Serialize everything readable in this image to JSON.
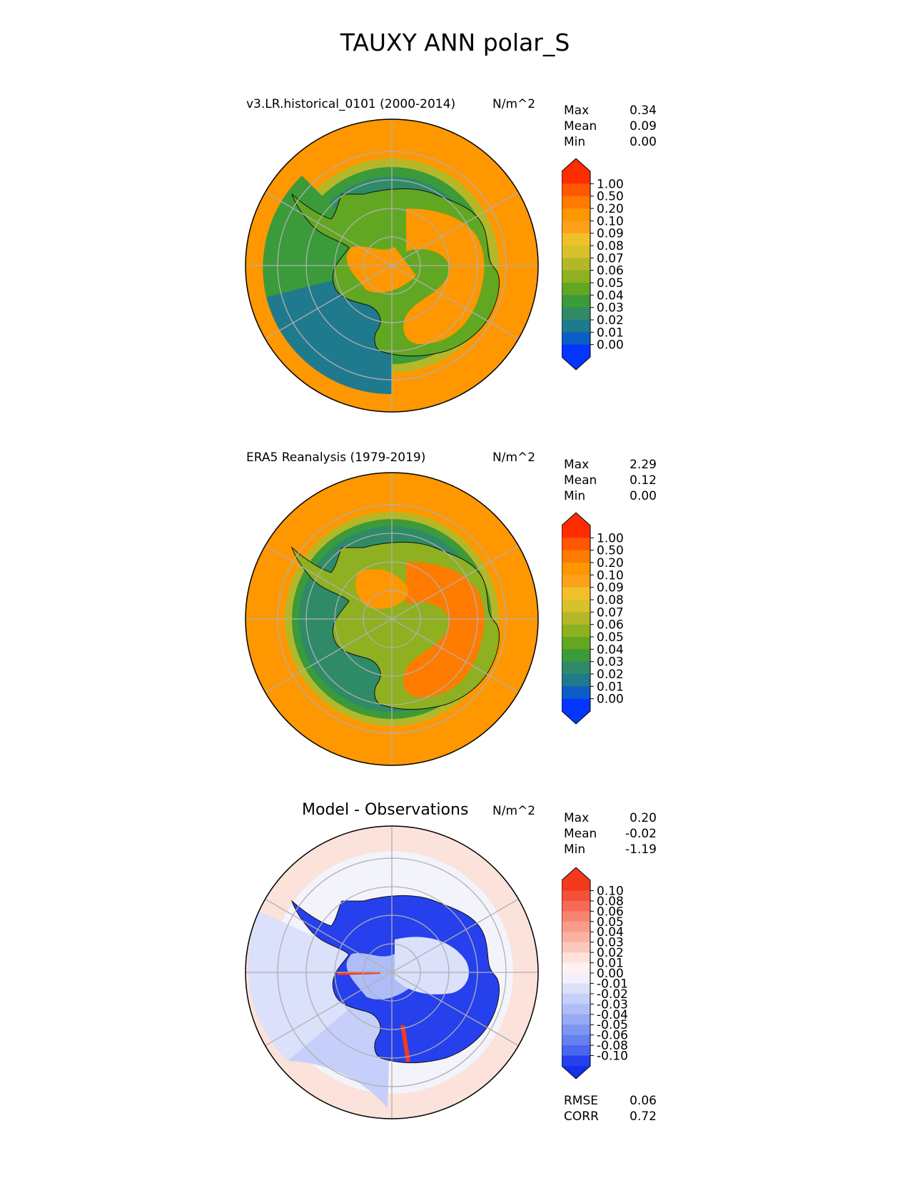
{
  "title": "TAUXY ANN polar_S",
  "units": "N/m^2",
  "stat_labels": {
    "max": "Max",
    "mean": "Mean",
    "min": "Min"
  },
  "panels": [
    {
      "title": "v3.LR.historical_0101 (2000-2014)",
      "stats": {
        "max": "0.34",
        "mean": "0.09",
        "min": "0.00"
      },
      "colorbar": {
        "ticks": [
          "1.00",
          "0.50",
          "0.20",
          "0.10",
          "0.09",
          "0.08",
          "0.07",
          "0.06",
          "0.05",
          "0.04",
          "0.03",
          "0.02",
          "0.01",
          "0.00"
        ],
        "colors": [
          "#fe2d00",
          "#ff5800",
          "#ff7b00",
          "#fe9700",
          "#fba21a",
          "#f0c02a",
          "#d6c22a",
          "#b4b828",
          "#8fb020",
          "#62a722",
          "#3b9a3a",
          "#2f8a68",
          "#207a8e",
          "#0b5ec8",
          "#0436ff"
        ],
        "upper_color": "#fe2d00",
        "lower_color": "#0436ff"
      }
    },
    {
      "title": "ERA5 Reanalysis (1979-2019)",
      "stats": {
        "max": "2.29",
        "mean": "0.12",
        "min": "0.00"
      },
      "colorbar": {
        "ticks": [
          "1.00",
          "0.50",
          "0.20",
          "0.10",
          "0.09",
          "0.08",
          "0.07",
          "0.06",
          "0.05",
          "0.04",
          "0.03",
          "0.02",
          "0.01",
          "0.00"
        ],
        "colors": [
          "#fe2d00",
          "#ff5800",
          "#ff7b00",
          "#fe9700",
          "#fba21a",
          "#f0c02a",
          "#d6c22a",
          "#b4b828",
          "#8fb020",
          "#62a722",
          "#3b9a3a",
          "#2f8a68",
          "#207a8e",
          "#0b5ec8",
          "#0436ff"
        ],
        "upper_color": "#fe2d00",
        "lower_color": "#0436ff"
      }
    },
    {
      "title": "Model - Observations",
      "stats": {
        "max": "0.20",
        "mean": "-0.02",
        "min": "-1.19"
      },
      "colorbar": {
        "ticks": [
          "0.10",
          "0.08",
          "0.06",
          "0.05",
          "0.04",
          "0.03",
          "0.02",
          "0.01",
          "0.00",
          "-0.01",
          "-0.02",
          "-0.03",
          "-0.04",
          "-0.05",
          "-0.06",
          "-0.08",
          "-0.10"
        ],
        "colors": [
          "#f23a1e",
          "#f5513a",
          "#f66a56",
          "#f78470",
          "#f89c8a",
          "#fab2a3",
          "#fbcabd",
          "#fde2da",
          "#fdf2ee",
          "#f0f1fd",
          "#dbe0fb",
          "#c5cff9",
          "#aebdf7",
          "#97aaf5",
          "#7f95f2",
          "#6680f0",
          "#4a66ee",
          "#2540ec"
        ],
        "upper_color": "#f23a1e",
        "lower_color": "#1530ea"
      },
      "metrics": {
        "rmse_label": "RMSE",
        "rmse": "0.06",
        "corr_label": "CORR",
        "corr": "0.72"
      }
    }
  ]
}
